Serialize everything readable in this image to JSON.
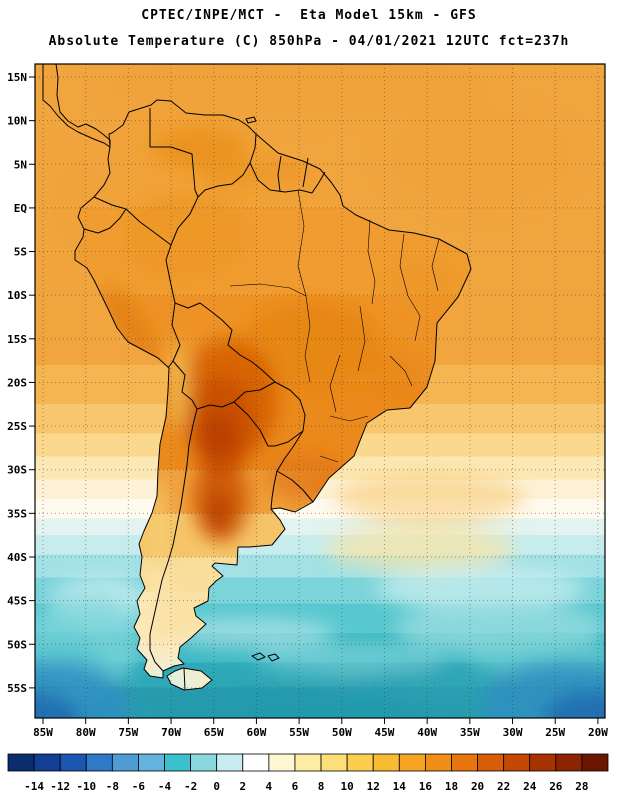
{
  "header": {
    "title_line1": "CPTEC/INPE/MCT -  Eta Model 15km - GFS",
    "title_line2": "Absolute Temperature (C) 850hPa - 04/01/2021 12UTC fct=237h"
  },
  "map": {
    "lat_labels": [
      "15N",
      "10N",
      "5N",
      "EQ",
      "5S",
      "10S",
      "15S",
      "20S",
      "25S",
      "30S",
      "35S",
      "40S",
      "45S",
      "50S",
      "55S"
    ],
    "lon_labels": [
      "85W",
      "80W",
      "75W",
      "70W",
      "65W",
      "60W",
      "55W",
      "50W",
      "45W",
      "40W",
      "35W",
      "30W",
      "25W",
      "20W"
    ]
  },
  "colorbar": {
    "tick_labels": [
      "-14",
      "-12",
      "-10",
      "-8",
      "-6",
      "-4",
      "-2",
      "0",
      "2",
      "4",
      "6",
      "8",
      "10",
      "12",
      "14",
      "16",
      "18",
      "20",
      "22",
      "24",
      "26",
      "28"
    ],
    "colors": [
      "#0b2d6e",
      "#123f96",
      "#1c56b0",
      "#2f79c6",
      "#4f9bd6",
      "#62b4de",
      "#3cc0cc",
      "#8ad8de",
      "#c8ecef",
      "#ffffff",
      "#fdf7d2",
      "#fdeda2",
      "#fcdf78",
      "#fbce4e",
      "#f9bb32",
      "#f5a522",
      "#f08e16",
      "#e6760d",
      "#d75e07",
      "#c44704",
      "#a93203",
      "#8c2302",
      "#6b1601"
    ]
  },
  "chart_data": {
    "type": "heatmap",
    "title": "Absolute Temperature (C) 850hPa",
    "source": "CPTEC/INPE/MCT",
    "model": "Eta Model 15km - GFS",
    "valid": "04/01/2021 12UTC fct=237h",
    "lat_ticks": [
      "15N",
      "10N",
      "5N",
      "EQ",
      "5S",
      "10S",
      "15S",
      "20S",
      "25S",
      "30S",
      "35S",
      "40S",
      "45S",
      "50S",
      "55S"
    ],
    "lon_ticks": [
      "85W",
      "80W",
      "75W",
      "70W",
      "65W",
      "60W",
      "55W",
      "50W",
      "45W",
      "40W",
      "35W",
      "30W",
      "25W",
      "20W"
    ],
    "scale_values_c": [
      -14,
      -12,
      -10,
      -8,
      -6,
      -4,
      -2,
      0,
      2,
      4,
      6,
      8,
      10,
      12,
      14,
      16,
      18,
      20,
      22,
      24,
      26,
      28
    ],
    "legend_position": "bottom"
  }
}
